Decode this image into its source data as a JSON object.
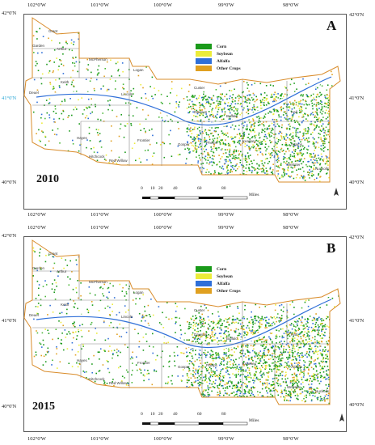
{
  "legend": [
    {
      "label": "Corn",
      "color": "#1a9a1a"
    },
    {
      "label": "Soybean",
      "color": "#ecec3a"
    },
    {
      "label": "Alfalfa",
      "color": "#2f6fd8"
    },
    {
      "label": "Other Crops",
      "color": "#e0a020"
    }
  ],
  "longitudes": [
    "102°0'W",
    "101°0'W",
    "100°0'W",
    "99°0'W",
    "98°0'W"
  ],
  "latitudes_right": [
    "42°0'N",
    "41°0'N",
    "40°0'N"
  ],
  "latitudes_left": [
    "42°0'N",
    "41°0'N",
    "40°0'N"
  ],
  "scale": {
    "ticks": [
      "0",
      "10",
      "20",
      "40",
      "60",
      "80"
    ],
    "unit": "Miles"
  },
  "panels": [
    {
      "letter": "A",
      "year": "2010"
    },
    {
      "letter": "B",
      "year": "2015"
    }
  ],
  "counties": [
    "Grant",
    "Garden",
    "Arthur",
    "McPherson",
    "Keith",
    "Deuel",
    "Lincoln",
    "Hayes",
    "Frontier",
    "Gosper",
    "Phelps",
    "Kearney",
    "Buffalo",
    "Adams",
    "Dawson",
    "Custer",
    "Hall",
    "Webster",
    "Nuckolls",
    "Red Willow",
    "Hitchcock",
    "Logan"
  ],
  "boundary_color": "#d98c2b"
}
